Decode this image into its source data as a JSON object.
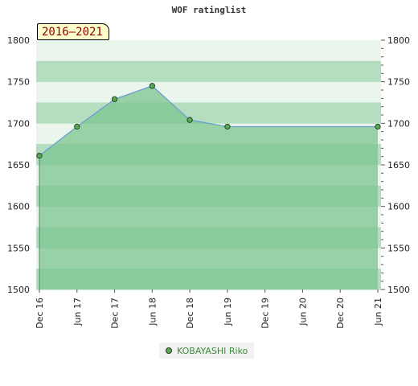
{
  "title": "WOF ratinglist",
  "range_badge": "2016–2021",
  "colors": {
    "band_dark": "#7cc48f",
    "band_mid": "#9cd3ab",
    "band_light": "#d8ecdd",
    "area_fill": "#7cc48f",
    "line": "#6a9fd0",
    "marker": "#5aa65a"
  },
  "chart_data": {
    "type": "area",
    "title": "WOF ratinglist",
    "x_ticks": [
      "Dec 16",
      "Jun 17",
      "Dec 17",
      "Jun 18",
      "Dec 18",
      "Jun 19",
      "Dec 19",
      "Jun 20",
      "Dec 20",
      "Jun 21"
    ],
    "y_ticks": [
      1500,
      1550,
      1600,
      1650,
      1700,
      1750,
      1800
    ],
    "ylim": [
      1500,
      1800
    ],
    "y_axis_both_sides": true,
    "series": [
      {
        "name": "KOBAYASHI Riko",
        "points": [
          {
            "x": "Dec 16",
            "y": 1661
          },
          {
            "x": "Jun 17",
            "y": 1696
          },
          {
            "x": "Dec 17",
            "y": 1729
          },
          {
            "x": "Jun 18",
            "y": 1745
          },
          {
            "x": "Dec 18",
            "y": 1704
          },
          {
            "x": "Jun 19",
            "y": 1696
          },
          {
            "x": "Jun 21",
            "y": 1696
          }
        ]
      }
    ],
    "legend_position": "bottom"
  }
}
